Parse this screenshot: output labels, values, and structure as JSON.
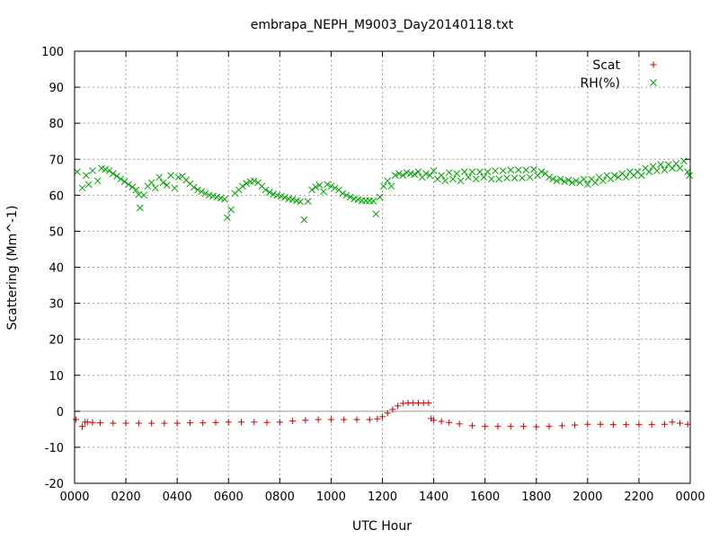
{
  "chart_data": {
    "type": "scatter",
    "title": "embrapa_NEPH_M9003_Day20140118.txt",
    "xlabel": "UTC Hour",
    "ylabel": "Scattering (Mm^-1)",
    "xlim": [
      0,
      24
    ],
    "ylim": [
      -20,
      100
    ],
    "grid": true,
    "legend_position": "top-right",
    "zero_line": true,
    "x_ticks": [
      {
        "value": 0,
        "label": "0000"
      },
      {
        "value": 2,
        "label": "0200"
      },
      {
        "value": 4,
        "label": "0400"
      },
      {
        "value": 6,
        "label": "0600"
      },
      {
        "value": 8,
        "label": "0800"
      },
      {
        "value": 10,
        "label": "1000"
      },
      {
        "value": 12,
        "label": "1200"
      },
      {
        "value": 14,
        "label": "1400"
      },
      {
        "value": 16,
        "label": "1600"
      },
      {
        "value": 18,
        "label": "1800"
      },
      {
        "value": 20,
        "label": "2000"
      },
      {
        "value": 22,
        "label": "2200"
      },
      {
        "value": 24,
        "label": "0000"
      }
    ],
    "y_ticks": [
      {
        "value": -20,
        "label": "-20"
      },
      {
        "value": -10,
        "label": "-10"
      },
      {
        "value": 0,
        "label": "0"
      },
      {
        "value": 10,
        "label": "10"
      },
      {
        "value": 20,
        "label": "20"
      },
      {
        "value": 30,
        "label": "30"
      },
      {
        "value": 40,
        "label": "40"
      },
      {
        "value": 50,
        "label": "50"
      },
      {
        "value": 60,
        "label": "60"
      },
      {
        "value": 70,
        "label": "70"
      },
      {
        "value": 80,
        "label": "80"
      },
      {
        "value": 90,
        "label": "90"
      },
      {
        "value": 100,
        "label": "100"
      }
    ],
    "series": [
      {
        "name": "Scat",
        "marker": "plus",
        "color": "#cc0000",
        "points": [
          [
            0.05,
            -2.3
          ],
          [
            0.3,
            -4.2
          ],
          [
            0.4,
            -3.0
          ],
          [
            0.5,
            -3.0
          ],
          [
            0.7,
            -3.1
          ],
          [
            1.0,
            -3.2
          ],
          [
            1.5,
            -3.3
          ],
          [
            2.0,
            -3.3
          ],
          [
            2.5,
            -3.3
          ],
          [
            3.0,
            -3.3
          ],
          [
            3.5,
            -3.3
          ],
          [
            4.0,
            -3.3
          ],
          [
            4.5,
            -3.2
          ],
          [
            5.0,
            -3.2
          ],
          [
            5.5,
            -3.1
          ],
          [
            6.0,
            -3.0
          ],
          [
            6.5,
            -3.0
          ],
          [
            7.0,
            -3.0
          ],
          [
            7.5,
            -3.1
          ],
          [
            8.0,
            -3.0
          ],
          [
            8.5,
            -2.7
          ],
          [
            9.0,
            -2.5
          ],
          [
            9.5,
            -2.3
          ],
          [
            10.0,
            -2.3
          ],
          [
            10.5,
            -2.3
          ],
          [
            11.0,
            -2.3
          ],
          [
            11.5,
            -2.3
          ],
          [
            11.8,
            -2.1
          ],
          [
            12.0,
            -1.5
          ],
          [
            12.2,
            -0.5
          ],
          [
            12.4,
            0.5
          ],
          [
            12.6,
            1.5
          ],
          [
            12.8,
            2.2
          ],
          [
            13.0,
            2.3
          ],
          [
            13.2,
            2.3
          ],
          [
            13.4,
            2.3
          ],
          [
            13.6,
            2.3
          ],
          [
            13.8,
            2.3
          ],
          [
            13.9,
            -2.0
          ],
          [
            14.0,
            -2.5
          ],
          [
            14.3,
            -2.8
          ],
          [
            14.6,
            -3.1
          ],
          [
            15.0,
            -3.5
          ],
          [
            15.5,
            -4.0
          ],
          [
            16.0,
            -4.2
          ],
          [
            16.5,
            -4.2
          ],
          [
            17.0,
            -4.2
          ],
          [
            17.5,
            -4.2
          ],
          [
            18.0,
            -4.3
          ],
          [
            18.5,
            -4.2
          ],
          [
            19.0,
            -4.0
          ],
          [
            19.5,
            -3.8
          ],
          [
            20.0,
            -3.6
          ],
          [
            20.5,
            -3.6
          ],
          [
            21.0,
            -3.7
          ],
          [
            21.5,
            -3.7
          ],
          [
            22.0,
            -3.7
          ],
          [
            22.5,
            -3.7
          ],
          [
            23.0,
            -3.6
          ],
          [
            23.3,
            -3.0
          ],
          [
            23.6,
            -3.3
          ],
          [
            23.9,
            -3.6
          ]
        ]
      },
      {
        "name": "RH(%)",
        "marker": "cross",
        "color": "#00a000",
        "points": [
          [
            0.1,
            66.5
          ],
          [
            0.3,
            62.0
          ],
          [
            0.45,
            65.5
          ],
          [
            0.55,
            63.0
          ],
          [
            0.7,
            66.8
          ],
          [
            0.9,
            64.0
          ],
          [
            1.05,
            67.5
          ],
          [
            1.2,
            67.2
          ],
          [
            1.35,
            66.8
          ],
          [
            1.5,
            66.0
          ],
          [
            1.65,
            65.3
          ],
          [
            1.8,
            64.5
          ],
          [
            1.95,
            63.8
          ],
          [
            2.1,
            63.0
          ],
          [
            2.25,
            62.3
          ],
          [
            2.4,
            61.5
          ],
          [
            2.5,
            60.2
          ],
          [
            2.55,
            56.5
          ],
          [
            2.7,
            60.0
          ],
          [
            2.85,
            62.5
          ],
          [
            3.0,
            63.5
          ],
          [
            3.15,
            62.0
          ],
          [
            3.3,
            65.0
          ],
          [
            3.45,
            63.5
          ],
          [
            3.6,
            62.8
          ],
          [
            3.75,
            65.5
          ],
          [
            3.9,
            62.0
          ],
          [
            4.05,
            65.0
          ],
          [
            4.2,
            65.3
          ],
          [
            4.35,
            64.2
          ],
          [
            4.5,
            63.2
          ],
          [
            4.65,
            62.2
          ],
          [
            4.8,
            61.5
          ],
          [
            4.95,
            61.0
          ],
          [
            5.1,
            60.5
          ],
          [
            5.25,
            60.0
          ],
          [
            5.4,
            59.8
          ],
          [
            5.55,
            59.5
          ],
          [
            5.7,
            59.2
          ],
          [
            5.85,
            58.9
          ],
          [
            5.95,
            53.8
          ],
          [
            6.1,
            56.0
          ],
          [
            6.25,
            60.5
          ],
          [
            6.4,
            61.5
          ],
          [
            6.55,
            62.5
          ],
          [
            6.7,
            63.3
          ],
          [
            6.85,
            63.8
          ],
          [
            7.0,
            64.0
          ],
          [
            7.15,
            63.5
          ],
          [
            7.3,
            62.5
          ],
          [
            7.45,
            61.5
          ],
          [
            7.6,
            60.8
          ],
          [
            7.75,
            60.3
          ],
          [
            7.9,
            60.0
          ],
          [
            8.05,
            59.7
          ],
          [
            8.2,
            59.4
          ],
          [
            8.35,
            59.0
          ],
          [
            8.5,
            58.8
          ],
          [
            8.65,
            58.5
          ],
          [
            8.8,
            58.2
          ],
          [
            8.95,
            53.2
          ],
          [
            9.1,
            58.3
          ],
          [
            9.25,
            61.5
          ],
          [
            9.4,
            62.3
          ],
          [
            9.55,
            62.8
          ],
          [
            9.7,
            61.0
          ],
          [
            9.85,
            63.0
          ],
          [
            10.0,
            62.5
          ],
          [
            10.15,
            62.0
          ],
          [
            10.3,
            61.5
          ],
          [
            10.45,
            60.5
          ],
          [
            10.6,
            60.0
          ],
          [
            10.75,
            59.5
          ],
          [
            10.9,
            59.0
          ],
          [
            11.05,
            58.8
          ],
          [
            11.2,
            58.5
          ],
          [
            11.35,
            58.5
          ],
          [
            11.5,
            58.5
          ],
          [
            11.65,
            58.4
          ],
          [
            11.75,
            54.8
          ],
          [
            11.9,
            59.5
          ],
          [
            12.05,
            62.5
          ],
          [
            12.2,
            64.0
          ],
          [
            12.35,
            62.5
          ],
          [
            12.5,
            65.5
          ],
          [
            12.65,
            66.0
          ],
          [
            12.8,
            65.5
          ],
          [
            12.95,
            66.3
          ],
          [
            13.1,
            66.0
          ],
          [
            13.25,
            65.8
          ],
          [
            13.4,
            66.5
          ],
          [
            13.55,
            65.0
          ],
          [
            13.7,
            66.0
          ],
          [
            13.85,
            65.5
          ],
          [
            14.0,
            66.8
          ],
          [
            14.15,
            64.5
          ],
          [
            14.3,
            65.5
          ],
          [
            14.45,
            64.0
          ],
          [
            14.6,
            66.3
          ],
          [
            14.75,
            64.5
          ],
          [
            14.9,
            66.0
          ],
          [
            15.05,
            64.0
          ],
          [
            15.2,
            66.5
          ],
          [
            15.35,
            65.0
          ],
          [
            15.5,
            66.5
          ],
          [
            15.65,
            64.5
          ],
          [
            15.8,
            66.5
          ],
          [
            15.95,
            65.0
          ],
          [
            16.1,
            66.5
          ],
          [
            16.25,
            64.5
          ],
          [
            16.4,
            66.8
          ],
          [
            16.55,
            64.5
          ],
          [
            16.7,
            66.8
          ],
          [
            16.85,
            64.8
          ],
          [
            17.0,
            67.0
          ],
          [
            17.15,
            64.8
          ],
          [
            17.3,
            67.0
          ],
          [
            17.45,
            64.8
          ],
          [
            17.6,
            67.0
          ],
          [
            17.75,
            65.0
          ],
          [
            17.9,
            67.2
          ],
          [
            18.05,
            65.5
          ],
          [
            18.2,
            66.5
          ],
          [
            18.35,
            66.0
          ],
          [
            18.5,
            65.0
          ],
          [
            18.65,
            64.5
          ],
          [
            18.8,
            64.0
          ],
          [
            18.95,
            64.5
          ],
          [
            19.1,
            63.8
          ],
          [
            19.25,
            64.2
          ],
          [
            19.4,
            63.5
          ],
          [
            19.55,
            64.0
          ],
          [
            19.7,
            63.5
          ],
          [
            19.85,
            64.5
          ],
          [
            20.0,
            63.0
          ],
          [
            20.15,
            64.5
          ],
          [
            20.3,
            63.5
          ],
          [
            20.45,
            65.0
          ],
          [
            20.6,
            64.0
          ],
          [
            20.75,
            65.5
          ],
          [
            20.9,
            64.5
          ],
          [
            21.05,
            65.5
          ],
          [
            21.2,
            65.0
          ],
          [
            21.35,
            66.0
          ],
          [
            21.5,
            65.0
          ],
          [
            21.65,
            66.5
          ],
          [
            21.8,
            65.5
          ],
          [
            21.95,
            66.5
          ],
          [
            22.1,
            65.5
          ],
          [
            22.25,
            67.5
          ],
          [
            22.4,
            66.5
          ],
          [
            22.55,
            68.0
          ],
          [
            22.7,
            66.8
          ],
          [
            22.85,
            68.5
          ],
          [
            23.0,
            67.0
          ],
          [
            23.15,
            68.5
          ],
          [
            23.3,
            67.5
          ],
          [
            23.45,
            68.8
          ],
          [
            23.6,
            67.5
          ],
          [
            23.75,
            69.5
          ],
          [
            23.9,
            66.5
          ],
          [
            23.97,
            65.5
          ]
        ]
      }
    ]
  }
}
